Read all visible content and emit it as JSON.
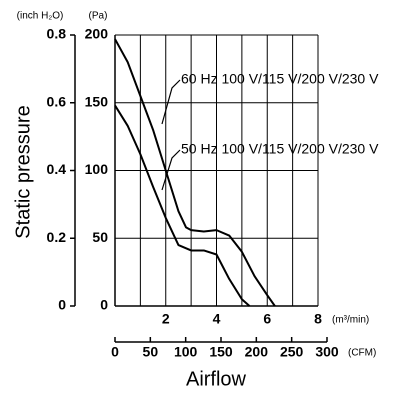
{
  "chart_data": {
    "type": "line",
    "y_title": "Static pressure",
    "x_title": "Airflow",
    "y_unit": "(Pa)",
    "y2_unit": "(inch H₂O)",
    "x_unit": "(m³/min)",
    "x2_unit": "(CFM)",
    "xlim": [
      0,
      8
    ],
    "xticks": [
      0,
      2,
      4,
      6,
      8
    ],
    "x_minor_ticks": [
      1,
      3,
      5,
      7
    ],
    "x2lim": [
      0,
      300
    ],
    "x2ticks": [
      0,
      50,
      100,
      150,
      200,
      250,
      300
    ],
    "ylim": [
      0,
      200
    ],
    "yticks": [
      0,
      50,
      100,
      150,
      200
    ],
    "y2lim": [
      0,
      0.8
    ],
    "y2ticks": [
      0,
      0.2,
      0.4,
      0.6,
      0.8
    ],
    "grid": true,
    "series": [
      {
        "name": "60 Hz 100 V/115 V/200 V/230 V",
        "color": "#000000",
        "x": [
          0,
          0.5,
          1,
          1.5,
          2,
          2.5,
          2.8,
          3,
          3.5,
          4,
          4.5,
          5,
          5.5,
          6,
          6.3
        ],
        "values": [
          197,
          180,
          155,
          130,
          100,
          70,
          58,
          56,
          55,
          56,
          52,
          40,
          22,
          8,
          0
        ]
      },
      {
        "name": "50 Hz 100 V/115 V/200 V/230 V",
        "color": "#000000",
        "x": [
          0,
          0.5,
          1,
          1.5,
          2,
          2.5,
          3,
          3.5,
          4,
          4.5,
          5,
          5.3
        ],
        "values": [
          148,
          133,
          112,
          88,
          65,
          45,
          41,
          41,
          38,
          20,
          5,
          0
        ]
      }
    ]
  }
}
